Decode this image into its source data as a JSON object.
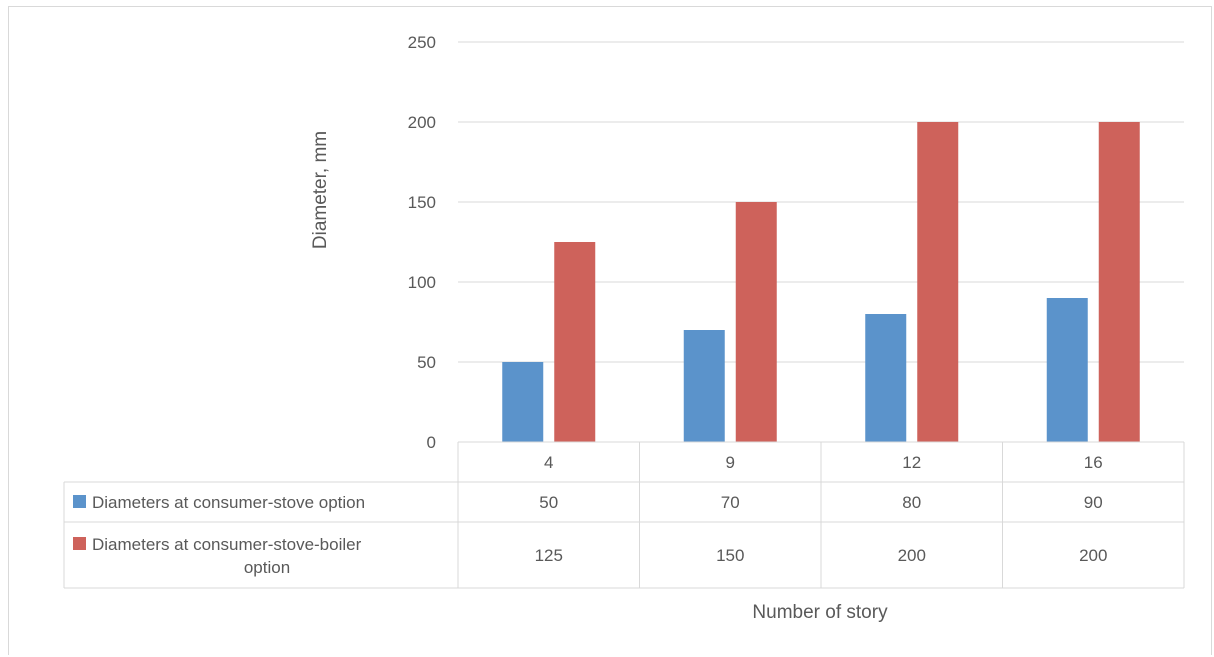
{
  "chart_data": {
    "type": "bar",
    "categories": [
      "4",
      "9",
      "12",
      "16"
    ],
    "series": [
      {
        "name": "Diameters at consumer-stove option",
        "values": [
          50,
          70,
          80,
          90
        ],
        "color": "#5b93cb"
      },
      {
        "name": "Diameters at consumer-stove-boiler option",
        "values": [
          125,
          150,
          200,
          200
        ],
        "color": "#ce625b"
      }
    ],
    "xlabel": "Number of story",
    "ylabel": "Diameter, mm",
    "ylim": [
      0,
      250
    ],
    "yticks": [
      "0",
      "50",
      "100",
      "150",
      "200",
      "250"
    ],
    "grid": true,
    "legend": "data-table",
    "data_table": {
      "rows": [
        {
          "label_lines": [
            "Diameters at consumer-stove option"
          ],
          "values": [
            "50",
            "70",
            "80",
            "90"
          ]
        },
        {
          "label_lines": [
            "Diameters at consumer-stove-boiler",
            "option"
          ],
          "values": [
            "125",
            "150",
            "200",
            "200"
          ]
        }
      ]
    },
    "grid_color": "#d9d9d9"
  }
}
